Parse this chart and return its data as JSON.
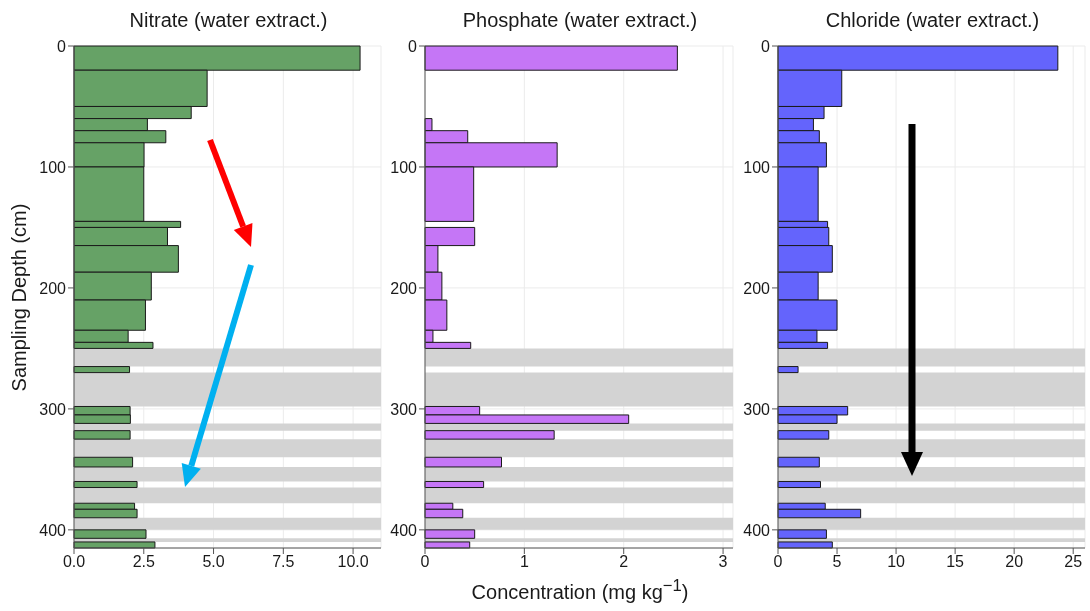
{
  "chart_data": [
    {
      "type": "histogram",
      "orientation": "horizontal",
      "title": "Nitrate (water extract.)",
      "ylabel": "Sampling Depth (cm)",
      "color": "#66a266",
      "bins": [
        0,
        20,
        50,
        60,
        70,
        80,
        100,
        145,
        150,
        165,
        187,
        210,
        235,
        245,
        250,
        265,
        270,
        298,
        305,
        312,
        318,
        325,
        340,
        348,
        360,
        365,
        378,
        383,
        390,
        400,
        407,
        410,
        415
      ],
      "values": [
        10.25,
        4.77,
        4.2,
        2.63,
        3.29,
        2.51,
        2.5,
        3.82,
        3.35,
        3.74,
        2.77,
        2.56,
        1.94,
        2.83,
        null,
        1.99,
        null,
        2.01,
        2.02,
        null,
        2.01,
        null,
        2.1,
        null,
        2.26,
        null,
        2.17,
        2.26,
        null,
        2.58,
        null,
        2.9
      ],
      "xlim": [
        0,
        11
      ],
      "xticks": [
        {
          "value": 0,
          "label": "0.0"
        },
        {
          "value": 2.5,
          "label": "2.5"
        },
        {
          "value": 5,
          "label": "5.0"
        },
        {
          "value": 7.5,
          "label": "7.5"
        },
        {
          "value": 10,
          "label": "10.0"
        }
      ],
      "ylim": [
        415,
        0
      ],
      "yticks": [
        0,
        100,
        200,
        300,
        400
      ],
      "grid": true,
      "bands": [
        {
          "axis": "y",
          "from": 250,
          "to": 265,
          "color": "#d3d3d3"
        },
        {
          "axis": "y",
          "from": 270,
          "to": 298,
          "color": "#d3d3d3"
        },
        {
          "axis": "y",
          "from": 312,
          "to": 318,
          "color": "#d3d3d3"
        },
        {
          "axis": "y",
          "from": 325,
          "to": 340,
          "color": "#d3d3d3"
        },
        {
          "axis": "y",
          "from": 348,
          "to": 360,
          "color": "#d3d3d3"
        },
        {
          "axis": "y",
          "from": 365,
          "to": 378,
          "color": "#d3d3d3"
        },
        {
          "axis": "y",
          "from": 390,
          "to": 400,
          "color": "#d3d3d3"
        },
        {
          "axis": "y",
          "from": 407,
          "to": 410,
          "color": "#d3d3d3"
        }
      ]
    },
    {
      "type": "histogram",
      "orientation": "horizontal",
      "title": "Phosphate (water extract.)",
      "xlabel": "Concentration (mg kg$^{−1}$)",
      "color": "#c576f6",
      "bins": [
        0,
        20,
        60,
        70,
        80,
        100,
        145,
        150,
        165,
        187,
        210,
        235,
        245,
        250,
        298,
        305,
        312,
        318,
        325,
        340,
        348,
        360,
        365,
        378,
        383,
        390,
        400,
        407,
        410,
        415
      ],
      "values": [
        2.54,
        null,
        0.07,
        0.43,
        1.33,
        0.49,
        null,
        0.5,
        0.13,
        0.17,
        0.22,
        0.08,
        0.46,
        null,
        0.55,
        2.05,
        null,
        1.3,
        null,
        0.77,
        null,
        0.59,
        null,
        0.28,
        0.38,
        null,
        0.5,
        null,
        0.45
      ],
      "xlim": [
        0,
        3.1
      ],
      "xticks": [
        0,
        1,
        2,
        3
      ],
      "ylim": [
        415,
        0
      ],
      "yticks": [
        0,
        100,
        200,
        300,
        400
      ],
      "grid": true,
      "bands": [
        {
          "axis": "y",
          "from": 250,
          "to": 265,
          "color": "#d3d3d3"
        },
        {
          "axis": "y",
          "from": 270,
          "to": 298,
          "color": "#d3d3d3"
        },
        {
          "axis": "y",
          "from": 312,
          "to": 318,
          "color": "#d3d3d3"
        },
        {
          "axis": "y",
          "from": 325,
          "to": 340,
          "color": "#d3d3d3"
        },
        {
          "axis": "y",
          "from": 348,
          "to": 360,
          "color": "#d3d3d3"
        },
        {
          "axis": "y",
          "from": 365,
          "to": 378,
          "color": "#d3d3d3"
        },
        {
          "axis": "y",
          "from": 390,
          "to": 400,
          "color": "#d3d3d3"
        },
        {
          "axis": "y",
          "from": 407,
          "to": 410,
          "color": "#d3d3d3"
        }
      ]
    },
    {
      "type": "histogram",
      "orientation": "horizontal",
      "title": "Chloride (water extract.)",
      "color": "#6464fc",
      "bins": [
        0,
        20,
        50,
        60,
        70,
        80,
        100,
        145,
        150,
        165,
        187,
        210,
        235,
        245,
        250,
        265,
        270,
        298,
        305,
        312,
        318,
        325,
        340,
        348,
        360,
        365,
        378,
        383,
        390,
        400,
        407,
        410,
        415
      ],
      "values": [
        23.7,
        5.4,
        3.9,
        3,
        3.5,
        4.1,
        3.4,
        4.2,
        4.3,
        4.6,
        3.4,
        5,
        3.3,
        4.2,
        null,
        1.7,
        null,
        5.9,
        5,
        null,
        4.3,
        null,
        3.5,
        null,
        3.6,
        null,
        4,
        7,
        null,
        4.1,
        null,
        4.6
      ],
      "xlim": [
        0,
        26
      ],
      "xticks": [
        0,
        5,
        10,
        15,
        20,
        25
      ],
      "ylim": [
        415,
        0
      ],
      "yticks": [
        0,
        100,
        200,
        300,
        400
      ],
      "grid": true,
      "bands": [
        {
          "axis": "y",
          "from": 250,
          "to": 265,
          "color": "#d3d3d3"
        },
        {
          "axis": "y",
          "from": 270,
          "to": 298,
          "color": "#d3d3d3"
        },
        {
          "axis": "y",
          "from": 312,
          "to": 318,
          "color": "#d3d3d3"
        },
        {
          "axis": "y",
          "from": 325,
          "to": 340,
          "color": "#d3d3d3"
        },
        {
          "axis": "y",
          "from": 348,
          "to": 360,
          "color": "#d3d3d3"
        },
        {
          "axis": "y",
          "from": 365,
          "to": 378,
          "color": "#d3d3d3"
        },
        {
          "axis": "y",
          "from": 390,
          "to": 400,
          "color": "#d3d3d3"
        },
        {
          "axis": "y",
          "from": 407,
          "to": 410,
          "color": "#d3d3d3"
        }
      ]
    }
  ]
}
